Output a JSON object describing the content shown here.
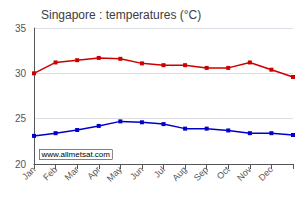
{
  "chart_data": {
    "type": "line",
    "title": "Singapore : temperatures (°C)",
    "categories": [
      "Jan",
      "Feb",
      "Mar",
      "Apr",
      "May",
      "Jun",
      "Jul",
      "Aug",
      "Sep",
      "Oct",
      "Nov",
      "Dec",
      null
    ],
    "series": [
      {
        "color": "#cc0000",
        "marker": "square",
        "values": [
          30.0,
          31.2,
          31.45,
          31.7,
          31.6,
          31.1,
          30.9,
          30.9,
          30.6,
          30.6,
          31.2,
          30.4,
          29.6
        ]
      },
      {
        "color": "#0000cc",
        "marker": "square",
        "values": [
          23.1,
          23.4,
          23.75,
          24.2,
          24.7,
          24.6,
          24.4,
          23.9,
          23.9,
          23.7,
          23.4,
          23.4,
          23.2
        ]
      }
    ],
    "ylim": [
      20,
      35
    ],
    "yticks": [
      20,
      25,
      30,
      35
    ],
    "grid": true,
    "annotation": "www.allmetsat.com"
  }
}
